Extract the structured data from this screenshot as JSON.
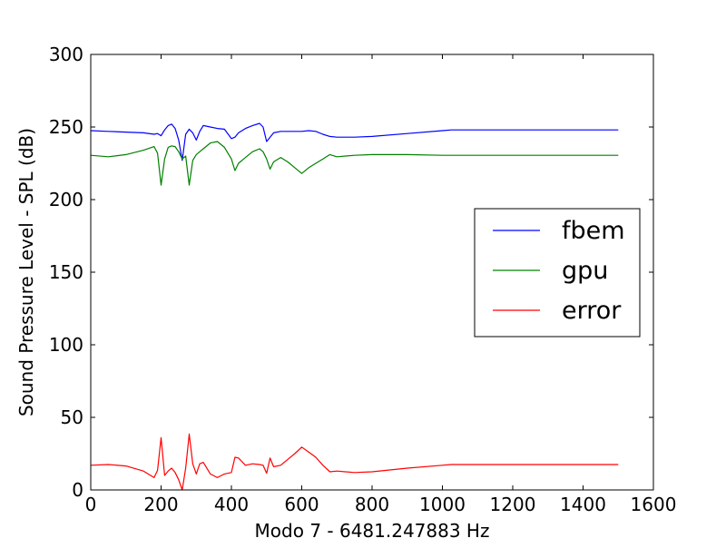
{
  "chart_data": {
    "type": "line",
    "title": "",
    "xlabel": "Modo 7 - 6481.247883 Hz",
    "ylabel": "Sound Pressure Level - SPL (dB)",
    "xlim": [
      0,
      1600
    ],
    "ylim": [
      0,
      300
    ],
    "xticks": [
      0,
      200,
      400,
      600,
      800,
      1000,
      1200,
      1400,
      1600
    ],
    "yticks": [
      0,
      50,
      100,
      150,
      200,
      250,
      300
    ],
    "grid": false,
    "legend": "center-right",
    "series": [
      {
        "name": "fbem",
        "color": "#0000ff",
        "x": [
          0,
          50,
          100,
          150,
          180,
          190,
          200,
          210,
          220,
          230,
          240,
          250,
          260,
          270,
          280,
          290,
          300,
          310,
          320,
          340,
          360,
          380,
          400,
          410,
          420,
          440,
          460,
          480,
          490,
          500,
          510,
          520,
          540,
          560,
          580,
          600,
          620,
          640,
          660,
          680,
          700,
          750,
          800,
          900,
          1000,
          1025,
          1100,
          1200,
          1300,
          1400,
          1500
        ],
        "y": [
          247.5,
          247,
          246.5,
          246,
          245,
          245.5,
          244,
          248,
          251,
          252,
          249,
          241,
          227,
          245,
          248.5,
          246,
          241,
          247,
          251,
          250,
          249,
          248.5,
          242,
          243,
          246,
          249,
          251,
          252.5,
          250,
          240,
          243,
          246,
          247,
          247,
          247,
          247,
          247.5,
          247,
          245,
          243.5,
          243,
          243,
          243.5,
          245.5,
          247.5,
          248,
          248,
          248,
          248,
          248,
          248
        ]
      },
      {
        "name": "gpu",
        "color": "#008000",
        "x": [
          0,
          50,
          100,
          150,
          180,
          190,
          200,
          210,
          220,
          230,
          240,
          250,
          260,
          270,
          280,
          290,
          300,
          310,
          320,
          340,
          360,
          380,
          400,
          410,
          420,
          440,
          460,
          480,
          490,
          500,
          510,
          520,
          540,
          560,
          580,
          600,
          620,
          640,
          660,
          680,
          700,
          750,
          800,
          900,
          1000,
          1025,
          1100,
          1200,
          1300,
          1400,
          1500
        ],
        "y": [
          230.5,
          229.5,
          231,
          234,
          236.5,
          232,
          210,
          228,
          236,
          237,
          236.5,
          233,
          228,
          230,
          210,
          227,
          231,
          233,
          235,
          239,
          240,
          236,
          228,
          220,
          225,
          229,
          233,
          235,
          233,
          228,
          221,
          226,
          229,
          226,
          222,
          218,
          222,
          225,
          228,
          231,
          229.5,
          230.5,
          231,
          231,
          230.5,
          230.5,
          230.5,
          230.5,
          230.5,
          230.5,
          230.5
        ]
      },
      {
        "name": "error",
        "color": "#ff0000",
        "x": [
          0,
          50,
          100,
          150,
          180,
          190,
          200,
          210,
          220,
          230,
          240,
          250,
          260,
          270,
          280,
          290,
          300,
          310,
          320,
          340,
          360,
          380,
          400,
          410,
          420,
          440,
          460,
          480,
          490,
          500,
          510,
          520,
          540,
          560,
          580,
          600,
          620,
          640,
          660,
          680,
          700,
          750,
          800,
          900,
          1000,
          1025,
          1100,
          1200,
          1300,
          1400,
          1500
        ],
        "y": [
          17,
          17.5,
          16.5,
          13,
          8.5,
          13.5,
          36,
          10,
          13,
          15,
          12,
          7,
          0,
          15,
          38.5,
          18,
          11,
          18,
          19,
          11,
          8.5,
          11,
          12,
          22.5,
          22,
          17,
          18,
          17.5,
          17,
          11.5,
          22,
          16,
          17,
          21,
          25,
          29.5,
          26,
          22.5,
          17,
          12.5,
          13,
          12,
          12.5,
          15,
          17,
          17.5,
          17.5,
          17.5,
          17.5,
          17.5,
          17.5
        ]
      }
    ]
  }
}
